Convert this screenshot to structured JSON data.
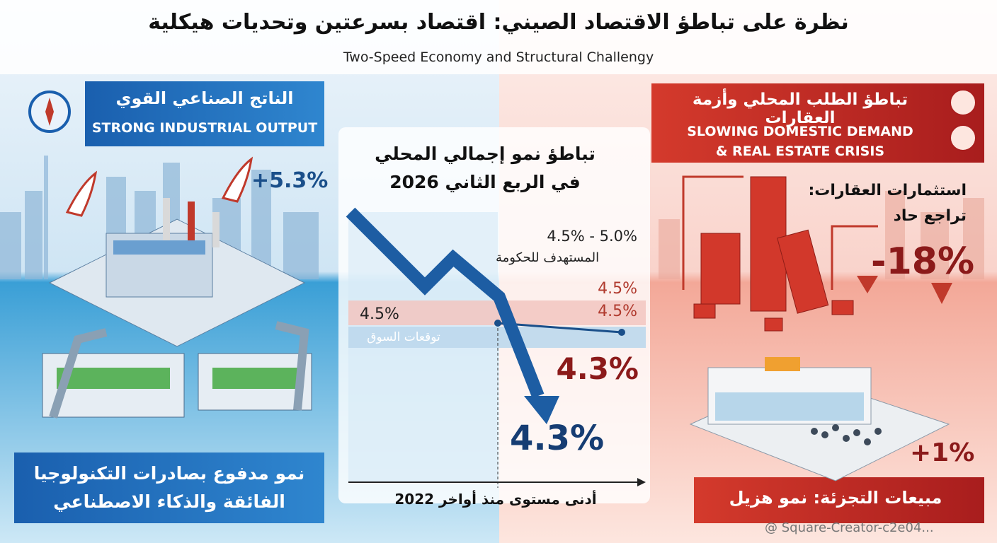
{
  "header": {
    "title": "نظرة على تباطؤ الاقتصاد الصيني: اقتصاد بسرعتين وتحديات هيكلية",
    "subtitle": "Two-Speed Economy and Structural Challengy"
  },
  "left_panel": {
    "title_ar": "الناتج الصناعي القوي",
    "title_en": "STRONG INDUSTRIAL OUTPUT",
    "value": "+5.3%",
    "footer": [
      "نمو مدفوع بصادرات التكنولوجيا",
      "الفائقة والذكاء الاصطناعي"
    ]
  },
  "center_panel": {
    "title": [
      "تباطؤ نمو إجمالي المحلي",
      "في الربع الثاني 2026"
    ],
    "target_range": "4.5% - 5.0%",
    "target_label": "المستهدف للحكومة",
    "target_value_top": "4.5%",
    "target_value_band": "4.5%",
    "market_value": "4.5%",
    "market_label": "توقعات السوق",
    "actual_value_red": "4.3%",
    "actual_value_blue": "4.3%",
    "axis_caption": "أدنى مستوى منذ أواخر 2022"
  },
  "right_panel": {
    "title_ar": "تباطؤ الطلب المحلي وأزمة العقارات",
    "title_en": [
      "SLOWING DOMESTIC DEMAND",
      "& REAL ESTATE CRISIS"
    ],
    "real_estate_label": [
      "استثمارات العقارات:",
      "تراجع حاد"
    ],
    "real_estate_value": "-18%",
    "retail_value": "+1%",
    "retail_label": "مبيعات التجزئة: نمو هزيل"
  },
  "watermark": "@ Square-Creator-c2e04..."
}
